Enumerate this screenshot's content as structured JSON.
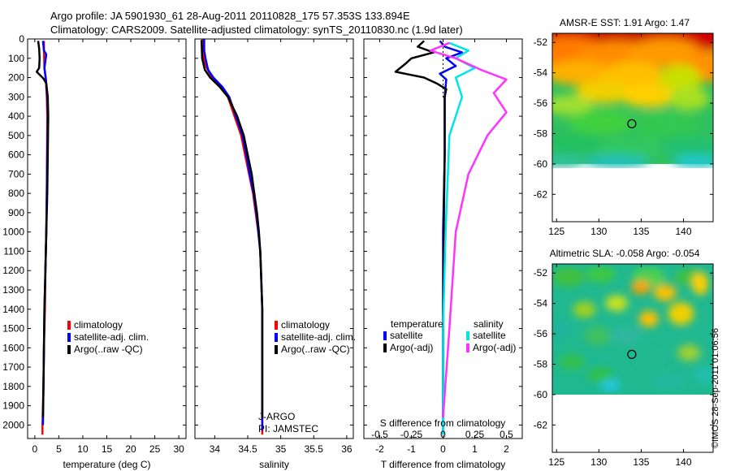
{
  "title_line1": "Argo profile: JA 5901930_61 28-Aug-2011 20110828_175 57.353S 133.894E",
  "title_line2": "Climatology: CARS2009. Satellite-adjusted climatology: synTS_20110830.nc (1.9d later)",
  "credit": "©IMOS 28-Sep-2011 01:06:56",
  "colors": {
    "climatology": "#ff0000",
    "satellite": "#0000ff",
    "argo": "#000000",
    "sal_satellite": "#00e5e5",
    "sal_argo": "#ff33ff"
  },
  "chart_data": [
    {
      "type": "line",
      "id": "temperature",
      "xlabel": "temperature (deg C)",
      "xlim": [
        -1.5,
        31.5
      ],
      "xticks": [
        0,
        5,
        10,
        15,
        20,
        25,
        30
      ],
      "ylim": [
        2070,
        0
      ],
      "yticks": [
        0,
        100,
        200,
        300,
        400,
        500,
        600,
        700,
        800,
        900,
        1000,
        1100,
        1200,
        1300,
        1400,
        1500,
        1600,
        1700,
        1800,
        1900,
        2000
      ],
      "legend": [
        "climatology",
        "satellite-adj. clim.",
        "Argo(..raw -QC)"
      ],
      "series": [
        {
          "name": "climatology",
          "color": "#ff0000",
          "points": [
            [
              1.9,
              10
            ],
            [
              1.9,
              60
            ],
            [
              2.0,
              150
            ],
            [
              2.3,
              210
            ],
            [
              2.5,
              300
            ],
            [
              2.6,
              400
            ],
            [
              2.55,
              600
            ],
            [
              2.5,
              800
            ],
            [
              2.4,
              1000
            ],
            [
              2.2,
              1200
            ],
            [
              2.1,
              1400
            ],
            [
              1.9,
              1600
            ],
            [
              1.8,
              1800
            ],
            [
              1.6,
              2000
            ],
            [
              1.6,
              2050
            ]
          ]
        },
        {
          "name": "satellite-adj. clim.",
          "color": "#0000ff",
          "points": [
            [
              1.7,
              10
            ],
            [
              1.9,
              60
            ],
            [
              2.4,
              80
            ],
            [
              2.0,
              150
            ],
            [
              2.3,
              210
            ],
            [
              2.6,
              300
            ],
            [
              2.7,
              400
            ],
            [
              2.6,
              600
            ],
            [
              2.5,
              800
            ],
            [
              2.4,
              1000
            ],
            [
              2.2,
              1200
            ],
            [
              2.0,
              1400
            ],
            [
              1.9,
              1600
            ],
            [
              1.8,
              1800
            ],
            [
              1.7,
              2000
            ]
          ]
        },
        {
          "name": "Argo(..raw -QC)",
          "color": "#000000",
          "points": [
            [
              0.7,
              10
            ],
            [
              0.9,
              50
            ],
            [
              1.0,
              100
            ],
            [
              0.9,
              150
            ],
            [
              0.4,
              170
            ],
            [
              1.0,
              185
            ],
            [
              1.8,
              205
            ],
            [
              2.4,
              230
            ],
            [
              2.7,
              300
            ],
            [
              2.8,
              400
            ],
            [
              2.7,
              600
            ],
            [
              2.6,
              800
            ],
            [
              2.4,
              1000
            ],
            [
              2.2,
              1200
            ],
            [
              2.0,
              1400
            ],
            [
              1.9,
              1600
            ],
            [
              1.8,
              1800
            ],
            [
              1.7,
              1960
            ]
          ]
        }
      ]
    },
    {
      "type": "line",
      "id": "salinity",
      "xlabel": "salinity",
      "xlim": [
        33.7,
        36.1
      ],
      "xticks": [
        34,
        34.5,
        35,
        35.5,
        36
      ],
      "xtick_labels": [
        "34",
        "34.5",
        "35",
        "35.5",
        "36"
      ],
      "ylim": [
        2070,
        0
      ],
      "legend": [
        "climatology",
        "satellite-adj. clim.",
        "Argo(..raw -QC)"
      ],
      "annotation": [
        "J-ARGO",
        "PI: JAMSTEC"
      ],
      "series": [
        {
          "name": "climatology",
          "color": "#ff0000",
          "points": [
            [
              33.82,
              0
            ],
            [
              33.83,
              100
            ],
            [
              33.88,
              150
            ],
            [
              33.96,
              200
            ],
            [
              34.1,
              250
            ],
            [
              34.2,
              300
            ],
            [
              34.3,
              400
            ],
            [
              34.4,
              500
            ],
            [
              34.46,
              600
            ],
            [
              34.52,
              700
            ],
            [
              34.58,
              800
            ],
            [
              34.62,
              900
            ],
            [
              34.66,
              1000
            ],
            [
              34.69,
              1100
            ],
            [
              34.7,
              1200
            ],
            [
              34.71,
              1300
            ],
            [
              34.72,
              1400
            ],
            [
              34.72,
              1500
            ],
            [
              34.72,
              1700
            ],
            [
              34.72,
              1900
            ],
            [
              34.72,
              2050
            ]
          ]
        },
        {
          "name": "satellite-adj. clim.",
          "color": "#0000ff",
          "points": [
            [
              33.84,
              0
            ],
            [
              33.84,
              60
            ],
            [
              33.86,
              100
            ],
            [
              33.9,
              160
            ],
            [
              33.98,
              200
            ],
            [
              34.12,
              250
            ],
            [
              34.22,
              300
            ],
            [
              34.32,
              400
            ],
            [
              34.42,
              500
            ],
            [
              34.48,
              600
            ],
            [
              34.53,
              700
            ],
            [
              34.59,
              800
            ],
            [
              34.63,
              900
            ],
            [
              34.66,
              1000
            ],
            [
              34.69,
              1100
            ],
            [
              34.7,
              1200
            ],
            [
              34.71,
              1300
            ],
            [
              34.72,
              1400
            ],
            [
              34.72,
              1500
            ],
            [
              34.72,
              1700
            ],
            [
              34.72,
              1900
            ],
            [
              34.72,
              2030
            ]
          ]
        },
        {
          "name": "Argo(..raw -QC)",
          "color": "#000000",
          "points": [
            [
              33.8,
              5
            ],
            [
              33.81,
              100
            ],
            [
              33.85,
              160
            ],
            [
              33.93,
              200
            ],
            [
              34.08,
              250
            ],
            [
              34.2,
              300
            ],
            [
              34.34,
              400
            ],
            [
              34.44,
              500
            ],
            [
              34.5,
              600
            ],
            [
              34.56,
              700
            ],
            [
              34.6,
              800
            ],
            [
              34.64,
              900
            ],
            [
              34.67,
              1000
            ],
            [
              34.69,
              1100
            ],
            [
              34.7,
              1200
            ],
            [
              34.71,
              1300
            ],
            [
              34.72,
              1400
            ],
            [
              34.72,
              1600
            ],
            [
              34.72,
              1800
            ],
            [
              34.72,
              1960
            ]
          ]
        }
      ]
    },
    {
      "type": "line",
      "id": "difference",
      "xlabel": "T difference from climatology",
      "xlabel_top": "S difference from climatology",
      "xlim": [
        -2.5,
        2.5
      ],
      "xticks": [
        -2,
        -1,
        0,
        1,
        2
      ],
      "xticks_s": [
        -0.5,
        -0.25,
        0,
        0.25,
        0.5
      ],
      "xticks_s_labels": [
        "-0.5",
        "-0.25",
        "0",
        "0.25",
        "0.5"
      ],
      "s_scale": 0.25,
      "ylim": [
        2070,
        0
      ],
      "legend_titles": [
        "temperature",
        "salinity"
      ],
      "legend": [
        "satellite",
        "Argo(-adj)",
        "satellite",
        "Argo(-adj)"
      ],
      "series": [
        {
          "name": "T satellite",
          "color": "#0000ff",
          "points": [
            [
              -0.1,
              10
            ],
            [
              0.05,
              40
            ],
            [
              0.6,
              70
            ],
            [
              0.1,
              100
            ],
            [
              0.4,
              140
            ],
            [
              -0.1,
              180
            ],
            [
              0.1,
              210
            ],
            [
              0.05,
              300
            ],
            [
              0.05,
              600
            ],
            [
              0.0,
              1000
            ],
            [
              0.0,
              1500
            ],
            [
              0.0,
              2050
            ]
          ]
        },
        {
          "name": "T Argo(-adj)",
          "color": "#000000",
          "points": [
            [
              -0.6,
              10
            ],
            [
              -0.8,
              40
            ],
            [
              -0.3,
              70
            ],
            [
              -1.0,
              100
            ],
            [
              -1.2,
              130
            ],
            [
              -1.5,
              170
            ],
            [
              -0.6,
              200
            ],
            [
              -0.2,
              230
            ],
            [
              0.1,
              260
            ],
            [
              0.05,
              300
            ],
            [
              0.05,
              600
            ],
            [
              0.02,
              1000
            ],
            [
              0.0,
              1500
            ],
            [
              0.0,
              1960
            ]
          ]
        },
        {
          "name": "S satellite",
          "color": "#00e5e5",
          "points": [
            [
              0.05,
              20
            ],
            [
              0.2,
              60
            ],
            [
              0.1,
              100
            ],
            [
              0.25,
              150
            ],
            [
              0.1,
              200
            ],
            [
              0.15,
              300
            ],
            [
              0.05,
              500
            ],
            [
              0.02,
              1000
            ],
            [
              0.0,
              1500
            ],
            [
              0.0,
              2050
            ]
          ]
        },
        {
          "name": "S Argo(-adj)",
          "color": "#ff33ff",
          "points": [
            [
              0.05,
              20
            ],
            [
              -0.1,
              60
            ],
            [
              0.1,
              100
            ],
            [
              0.3,
              160
            ],
            [
              0.5,
              210
            ],
            [
              0.4,
              280
            ],
            [
              0.5,
              380
            ],
            [
              0.35,
              500
            ],
            [
              0.2,
              700
            ],
            [
              0.1,
              1000
            ],
            [
              0.05,
              1500
            ],
            [
              0.0,
              1960
            ]
          ]
        }
      ]
    },
    {
      "type": "heatmap",
      "id": "sst_map",
      "title": "AMSR-E SST: 1.91 Argo: 1.47",
      "xlim": [
        124.5,
        143.5
      ],
      "xticks": [
        125,
        130,
        135,
        140
      ],
      "ylim": [
        -63.8,
        -51.4
      ],
      "yticks": [
        -52,
        -54,
        -56,
        -58,
        -60,
        -62
      ],
      "data_lat_range": [
        -60,
        -51.4
      ],
      "argo_position": [
        133.894,
        -57.353
      ]
    },
    {
      "type": "heatmap",
      "id": "sla_map",
      "title": "Altimetric SLA: -0.058 Argo: -0.054",
      "xlim": [
        124.5,
        143.5
      ],
      "xticks": [
        125,
        130,
        135,
        140
      ],
      "ylim": [
        -63.8,
        -51.4
      ],
      "yticks": [
        -52,
        -54,
        -56,
        -58,
        -60,
        -62
      ],
      "data_lat_range": [
        -60,
        -51.4
      ],
      "argo_position": [
        133.894,
        -57.353
      ]
    }
  ]
}
